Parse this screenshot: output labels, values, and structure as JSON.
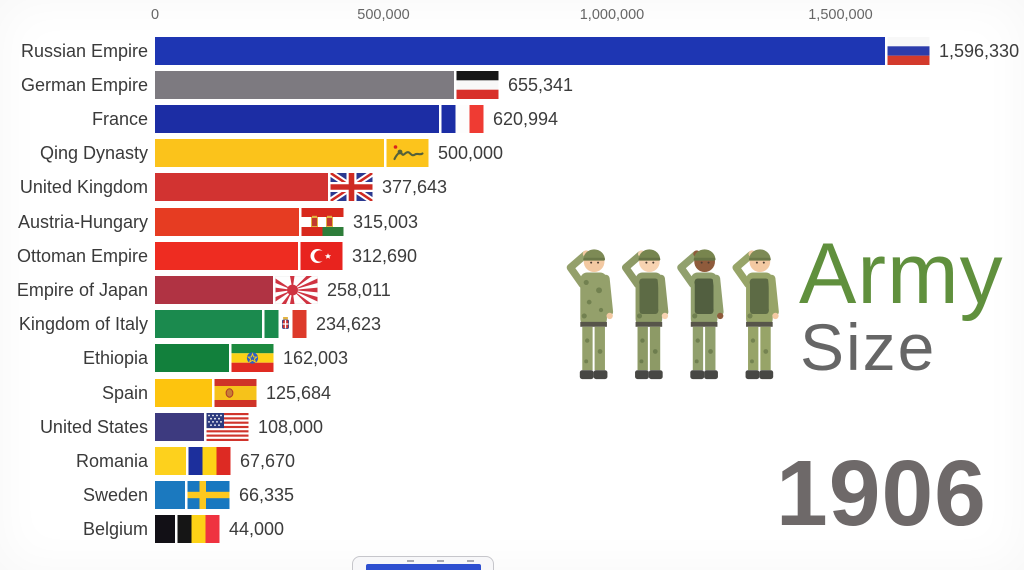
{
  "window": {
    "background": "#ffffff"
  },
  "chart_data": {
    "type": "bar",
    "orientation": "horizontal",
    "title": "Army Size",
    "year": "1906",
    "xlabel": "",
    "ylabel": "",
    "grid": false,
    "legend": false,
    "x_axis": {
      "tick_labels": [
        "0",
        "500,000",
        "1,000,000",
        "1,500,000"
      ],
      "tick_values": [
        0,
        500000,
        1000000,
        1500000
      ],
      "range": [
        0,
        1780000
      ]
    },
    "rows": [
      {
        "country": "Russian Empire",
        "value": 1596330,
        "value_label": "1,596,330",
        "bar_color": "#1e36b3",
        "flag_icon": "russian-empire"
      },
      {
        "country": "German Empire",
        "value": 655341,
        "value_label": "655,341",
        "bar_color": "#7d7a80",
        "flag_icon": "german-empire"
      },
      {
        "country": "France",
        "value": 620994,
        "value_label": "620,994",
        "bar_color": "#1c2da4",
        "flag_icon": "france"
      },
      {
        "country": "Qing Dynasty",
        "value": 500000,
        "value_label": "500,000",
        "bar_color": "#fbc31b",
        "flag_icon": "qing-dynasty"
      },
      {
        "country": "United Kingdom",
        "value": 377643,
        "value_label": "377,643",
        "bar_color": "#d23331",
        "flag_icon": "united-kingdom"
      },
      {
        "country": "Austria-Hungary",
        "value": 315003,
        "value_label": "315,003",
        "bar_color": "#e63c22",
        "flag_icon": "austria-hungary"
      },
      {
        "country": "Ottoman Empire",
        "value": 312690,
        "value_label": "312,690",
        "bar_color": "#ee2c21",
        "flag_icon": "ottoman-empire"
      },
      {
        "country": "Empire of Japan",
        "value": 258011,
        "value_label": "258,011",
        "bar_color": "#b03343",
        "flag_icon": "empire-of-japan"
      },
      {
        "country": "Kingdom of Italy",
        "value": 234623,
        "value_label": "234,623",
        "bar_color": "#1b8a4e",
        "flag_icon": "kingdom-of-italy"
      },
      {
        "country": "Ethiopia",
        "value": 162003,
        "value_label": "162,003",
        "bar_color": "#12803c",
        "flag_icon": "ethiopia"
      },
      {
        "country": "Spain",
        "value": 125684,
        "value_label": "125,684",
        "bar_color": "#fdc40e",
        "flag_icon": "spain"
      },
      {
        "country": "United States",
        "value": 108000,
        "value_label": "108,000",
        "bar_color": "#3d3a7f",
        "flag_icon": "united-states"
      },
      {
        "country": "Romania",
        "value": 67670,
        "value_label": "67,670",
        "bar_color": "#fdd11d",
        "flag_icon": "romania"
      },
      {
        "country": "Sweden",
        "value": 66335,
        "value_label": "66,335",
        "bar_color": "#1b79bf",
        "flag_icon": "sweden"
      },
      {
        "country": "Belgium",
        "value": 44000,
        "value_label": "44,000",
        "bar_color": "#121016",
        "flag_icon": "belgium"
      }
    ]
  },
  "branding": {
    "title_line1": "Army",
    "title_line2": "Size",
    "title_line1_color": "#60903d",
    "title_line2_color": "#666666",
    "year": "1906",
    "year_color": "#6e6969",
    "illustration": "four-saluting-soldiers"
  },
  "player": {
    "progress_color": "#2e4fd0"
  }
}
